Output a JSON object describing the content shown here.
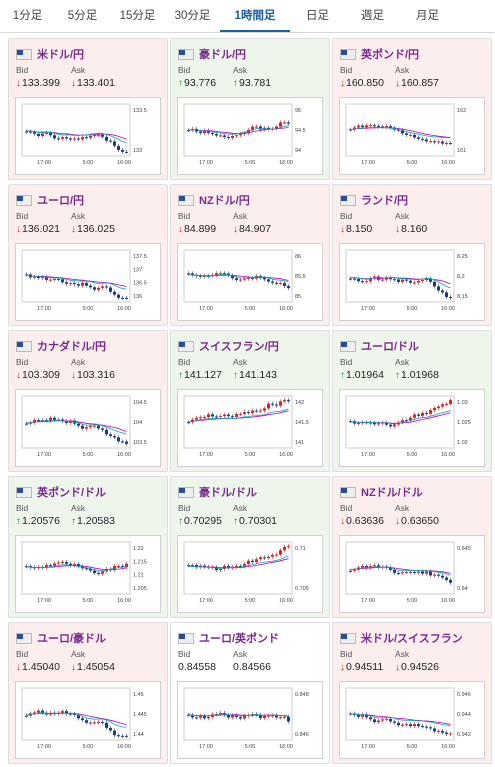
{
  "tabs": [
    "1分足",
    "5分足",
    "15分足",
    "30分足",
    "1時間足",
    "日足",
    "週足",
    "月足"
  ],
  "active_tab": 4,
  "bid_label": "Bid",
  "ask_label": "Ask",
  "colors": {
    "down_bg": "#fdeeee",
    "up_bg": "#eef6ec",
    "up": "#1a8f2a",
    "down": "#d81b1b",
    "ma1": "#c000c0",
    "ma2": "#00a7b5"
  },
  "pairs": [
    {
      "name": "米ドル/円",
      "bid": "133.399",
      "ask": "133.401",
      "dir": "down",
      "ticks": [
        "133.5",
        "133"
      ],
      "x": [
        "17:00",
        "5:00",
        "16:00"
      ]
    },
    {
      "name": "豪ドル/円",
      "bid": "93.776",
      "ask": "93.781",
      "dir": "up",
      "ticks": [
        "95",
        "94.5",
        "94"
      ],
      "x": [
        "17:00",
        "5:00",
        "16:00"
      ]
    },
    {
      "name": "英ポンド/円",
      "bid": "160.850",
      "ask": "160.857",
      "dir": "down",
      "ticks": [
        "162",
        "161"
      ],
      "x": [
        "17:00",
        "5:00",
        "16:00"
      ]
    },
    {
      "name": "ユーロ/円",
      "bid": "136.021",
      "ask": "136.025",
      "dir": "down",
      "ticks": [
        "137.5",
        "137",
        "136.5",
        "136"
      ],
      "x": [
        "17:00",
        "5:00",
        "16:00"
      ]
    },
    {
      "name": "NZドル/円",
      "bid": "84.899",
      "ask": "84.907",
      "dir": "down",
      "ticks": [
        "86",
        "85.5",
        "85"
      ],
      "x": [
        "17:00",
        "5:00",
        "16:00"
      ]
    },
    {
      "name": "ランド/円",
      "bid": "8.150",
      "ask": "8.160",
      "dir": "down",
      "ticks": [
        "8.25",
        "8.2",
        "8.15"
      ],
      "x": [
        "17:00",
        "5:00",
        "16:00"
      ]
    },
    {
      "name": "カナダドル/円",
      "bid": "103.309",
      "ask": "103.316",
      "dir": "down",
      "ticks": [
        "104.5",
        "104",
        "103.5"
      ],
      "x": [
        "17:00",
        "5:00",
        "16:00"
      ]
    },
    {
      "name": "スイスフラン/円",
      "bid": "141.127",
      "ask": "141.143",
      "dir": "up",
      "ticks": [
        "142",
        "141.5",
        "141"
      ],
      "x": [
        "17:00",
        "5:00",
        "16:00"
      ]
    },
    {
      "name": "ユーロ/ドル",
      "bid": "1.01964",
      "ask": "1.01968",
      "dir": "up",
      "ticks": [
        "1.03",
        "1.025",
        "1.02"
      ],
      "x": [
        "17:00",
        "5:00",
        "16:00"
      ]
    },
    {
      "name": "英ポンド/ドル",
      "bid": "1.20576",
      "ask": "1.20583",
      "dir": "up",
      "ticks": [
        "1.22",
        "1.215",
        "1.21",
        "1.205"
      ],
      "x": [
        "17:00",
        "5:00",
        "16:00"
      ]
    },
    {
      "name": "豪ドル/ドル",
      "bid": "0.70295",
      "ask": "0.70301",
      "dir": "up",
      "ticks": [
        "0.71",
        "0.705"
      ],
      "x": [
        "17:00",
        "5:00",
        "16:00"
      ]
    },
    {
      "name": "NZドル/ドル",
      "bid": "0.63636",
      "ask": "0.63650",
      "dir": "down",
      "ticks": [
        "0.645",
        "0.64"
      ],
      "x": [
        "17:00",
        "5:00",
        "16:00"
      ]
    },
    {
      "name": "ユーロ/豪ドル",
      "bid": "1.45040",
      "ask": "1.45054",
      "dir": "down",
      "ticks": [
        "1.45",
        "1.445",
        "1.44"
      ],
      "x": [
        "17:00",
        "5:00",
        "16:00"
      ]
    },
    {
      "name": "ユーロ/英ポンド",
      "bid": "0.84558",
      "ask": "0.84566",
      "dir": "flat",
      "ticks": [
        "0.848",
        "0.846"
      ],
      "x": [
        "17:00",
        "5:00",
        "16:00"
      ]
    },
    {
      "name": "米ドル/スイスフラン",
      "bid": "0.94511",
      "ask": "0.94526",
      "dir": "down",
      "ticks": [
        "0.946",
        "0.944",
        "0.942"
      ],
      "x": [
        "17:00",
        "5:00",
        "16:00"
      ]
    }
  ]
}
